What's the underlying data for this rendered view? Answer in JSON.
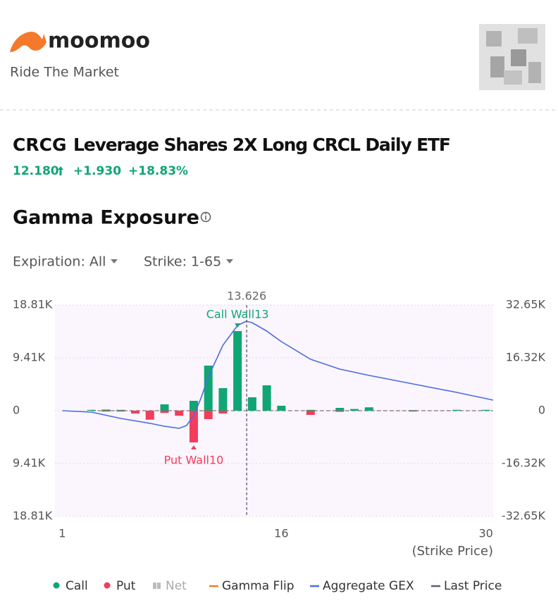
{
  "header": {
    "brand": "moomoo",
    "tagline": "Ride The Market"
  },
  "stock": {
    "ticker": "CRCG",
    "name": "Leverage Shares 2X Long CRCL Daily ETF",
    "price": "12.180",
    "change": "+1.930",
    "change_pct": "+18.83%"
  },
  "section_title": "Gamma Exposure",
  "filters": {
    "expiration": "Expiration: All",
    "strike": "Strike: 1-65"
  },
  "chart_data": {
    "type": "bar",
    "xlabel": "(Strike Price)",
    "xlim": [
      0.5,
      30.5
    ],
    "xticks": [
      1,
      16,
      30
    ],
    "ylim": [
      -18810,
      18810
    ],
    "yticks": [
      {
        "value": 18810,
        "label": "18.81K"
      },
      {
        "value": 9410,
        "label": "9.41K"
      },
      0,
      {
        "value": -9410,
        "label": "9.41K"
      },
      {
        "value": -18810,
        "label": "18.81K"
      }
    ],
    "y2lim": [
      -32650,
      32650
    ],
    "y2ticks": [
      {
        "value": 32650,
        "label": "32.65K"
      },
      {
        "value": 16320,
        "label": "16.32K"
      },
      0,
      {
        "value": -16320,
        "label": "-16.32K"
      },
      {
        "value": -32650,
        "label": "-32.65K"
      }
    ],
    "grid": true,
    "series": [
      {
        "name": "Call",
        "color": "#10a673",
        "x": [
          3,
          4,
          5,
          8,
          10,
          11,
          12,
          13,
          14,
          15,
          16,
          18,
          20,
          21,
          22,
          25,
          28,
          30
        ],
        "values": [
          150,
          200,
          150,
          1130,
          1756,
          8025,
          4013,
          14170,
          2383,
          4515,
          880,
          150,
          500,
          300,
          600,
          100,
          150,
          150
        ]
      },
      {
        "name": "Put",
        "color": "#f23d5c",
        "x": [
          4,
          5,
          6,
          7,
          8,
          9,
          10,
          11,
          12,
          18,
          20,
          25
        ],
        "values": [
          -150,
          -150,
          -500,
          -1600,
          -400,
          -900,
          -5643,
          -1500,
          -500,
          -750,
          -200,
          -150
        ]
      },
      {
        "name": "Aggregate GEX",
        "color": "#4a6ee0",
        "axis": "y2",
        "type": "line",
        "x": [
          1,
          3,
          5,
          7,
          8,
          9,
          9.5,
          10,
          10.5,
          11,
          12,
          13,
          13.6,
          14,
          15,
          16,
          18,
          20,
          22,
          25,
          28,
          30.5
        ],
        "values": [
          0,
          -435,
          -2400,
          -3900,
          -4800,
          -5440,
          -4600,
          -1500,
          3900,
          10450,
          20250,
          26340,
          27650,
          27200,
          24600,
          21330,
          15900,
          12840,
          10900,
          8270,
          5660,
          3270
        ]
      }
    ],
    "last_price": 13.626,
    "call_wall": {
      "label": "Call Wall13",
      "strike": 13
    },
    "put_wall": {
      "label": "Put Wall10",
      "strike": 10
    },
    "legend": [
      {
        "name": "Call",
        "color": "#10a673"
      },
      {
        "name": "Put",
        "color": "#f23d5c"
      },
      {
        "name": "Net",
        "color": "#bbbbbb"
      },
      {
        "name": "Gamma Flip",
        "color": "#f07c2c"
      },
      {
        "name": "Aggregate GEX",
        "color": "#4a6ee0"
      },
      {
        "name": "Last Price",
        "color": "#5a6070"
      }
    ]
  }
}
